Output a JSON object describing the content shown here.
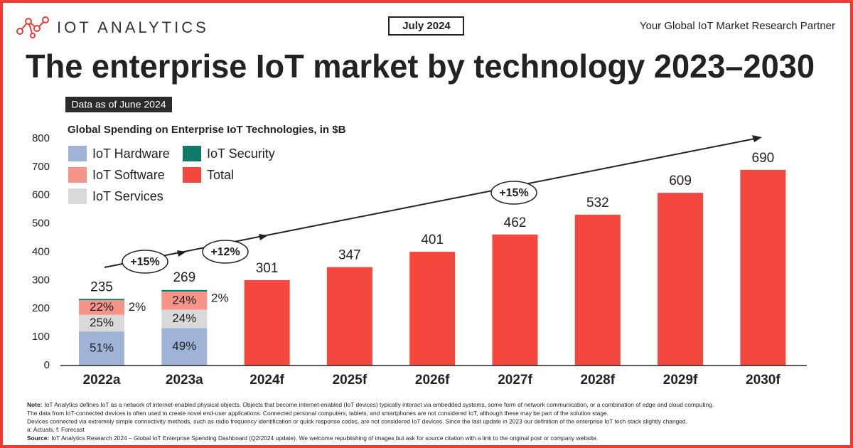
{
  "header": {
    "logo": "IOT ANALYTICS",
    "date": "July 2024",
    "tagline": "Your Global IoT Market Research Partner",
    "headline": "The enterprise IoT market by technology 2023–2030",
    "data_as_of": "Data as of June 2024"
  },
  "chart_data": {
    "type": "stacked-bar",
    "title": "Global Spending on Enterprise IoT Technologies, in $B",
    "categories": [
      "2022a",
      "2023a",
      "2024f",
      "2025f",
      "2026f",
      "2027f",
      "2028f",
      "2029f",
      "2030f"
    ],
    "total": {
      "name": "Total",
      "color": "#f4473e",
      "values": [
        235,
        269,
        301,
        347,
        401,
        462,
        532,
        609,
        690
      ]
    },
    "share_series": [
      {
        "name": "IoT Hardware",
        "color": "#9fb3d6",
        "values": [
          51,
          49,
          null,
          null,
          null,
          null,
          null,
          null,
          null
        ],
        "value_labels": [
          "51%",
          "49%",
          null,
          null,
          null,
          null,
          null,
          null,
          null
        ]
      },
      {
        "name": "IoT Services",
        "color": "#d9d9d9",
        "values": [
          25,
          24,
          null,
          null,
          null,
          null,
          null,
          null,
          null
        ],
        "value_labels": [
          "25%",
          "24%",
          null,
          null,
          null,
          null,
          null,
          null,
          null
        ]
      },
      {
        "name": "IoT Software",
        "color": "#f7948a",
        "values": [
          22,
          24,
          null,
          null,
          null,
          null,
          null,
          null,
          null
        ],
        "value_labels": [
          "22%",
          "24%",
          null,
          null,
          null,
          null,
          null,
          null,
          null
        ]
      },
      {
        "name": "IoT Security",
        "color": "#0e7a6a",
        "values": [
          2,
          2,
          null,
          null,
          null,
          null,
          null,
          null,
          null
        ],
        "value_labels": [
          "2%",
          "2%",
          null,
          null,
          null,
          null,
          null,
          null,
          null
        ]
      }
    ],
    "ylim": [
      0,
      800
    ],
    "yticks": [
      0,
      100,
      200,
      300,
      400,
      500,
      600,
      700,
      800
    ],
    "grid": false,
    "annotations": [
      "+15%",
      "+12%",
      "+15%"
    ]
  },
  "footer": {
    "note_label": "Note:",
    "notes": [
      "IoT Analytics defines IoT as a network of internet-enabled physical objects. Objects that become internet-enabled (IoT devices) typically interact via embedded systems, some form of network communication, or a combination of edge and cloud computing.",
      "The data from IoT-connected devices is often used to create novel end-user applications. Connected personal computers, tablets, and smartphones are not considered IoT, although these may be part of the solution stage.",
      "Devices connected via extremely simple connectivity methods, such as radio frequency identification or quick response codes, are not considered IoT devices. Since the last update in 2023 our definition of the enterprise IoT tech stack slightly changed.",
      "a: Actuals, f: Forecast"
    ],
    "source_label": "Source:",
    "source": "IoT Analytics Research 2024 – Global IoT Enterprise Spending Dashboard (Q2/2024 update). We welcome republishing of images but ask for source citation with a link to the original post or company website."
  }
}
